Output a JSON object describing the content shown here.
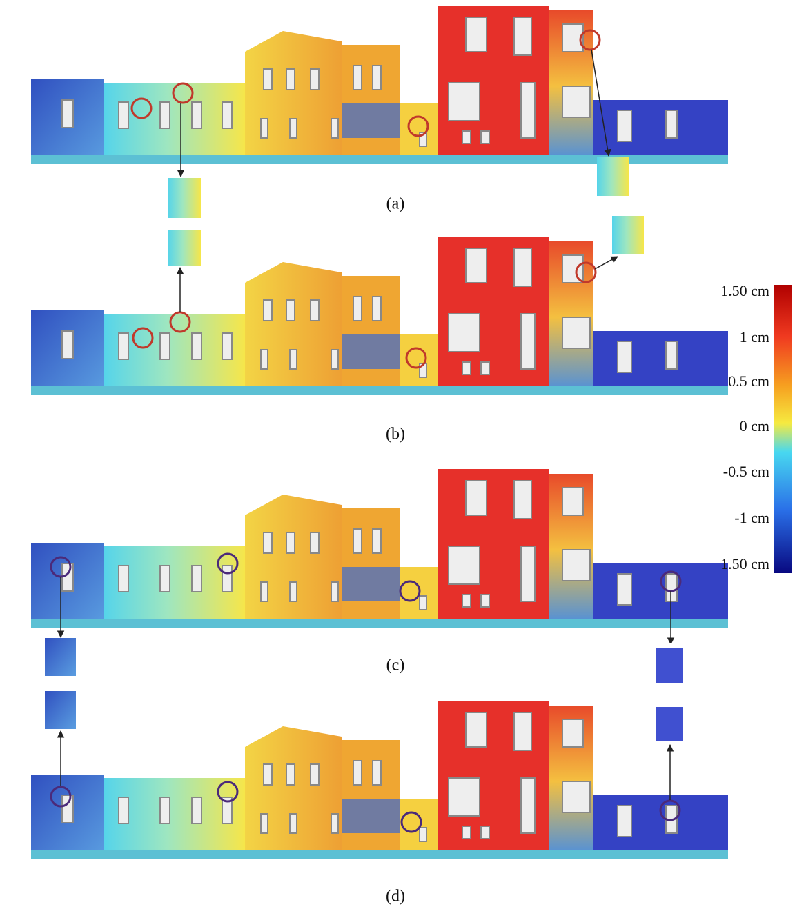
{
  "panels": [
    {
      "label": "(a)"
    },
    {
      "label": "(b)"
    },
    {
      "label": "(c)"
    },
    {
      "label": "(d)"
    }
  ],
  "colorbar": {
    "labels": [
      "1.50 cm",
      "1 cm",
      "0.5 cm",
      "0 cm",
      "-0.5 cm",
      "-1 cm",
      "1.50 cm"
    ]
  }
}
